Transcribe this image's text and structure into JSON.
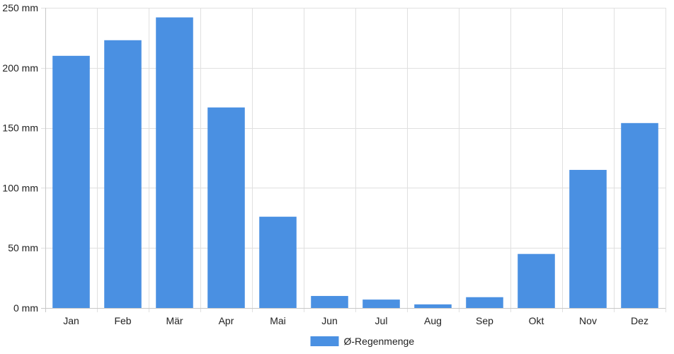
{
  "chart_data": {
    "type": "bar",
    "categories": [
      "Jan",
      "Feb",
      "Mär",
      "Apr",
      "Mai",
      "Jun",
      "Jul",
      "Aug",
      "Sep",
      "Okt",
      "Nov",
      "Dez"
    ],
    "series": [
      {
        "name": "Ø-Regenmenge",
        "values": [
          210,
          223,
          242,
          167,
          76,
          10,
          7,
          3,
          9,
          45,
          115,
          154
        ],
        "color": "#4a90e2"
      }
    ],
    "y_ticks": [
      "0 mm",
      "50 mm",
      "100 mm",
      "150 mm",
      "200 mm",
      "250 mm"
    ],
    "ylim": [
      0,
      250
    ],
    "y_tick_values": [
      0,
      50,
      100,
      150,
      200,
      250
    ],
    "grid": true,
    "legend_position": "bottom-center",
    "title": "",
    "xlabel": "",
    "ylabel": ""
  }
}
